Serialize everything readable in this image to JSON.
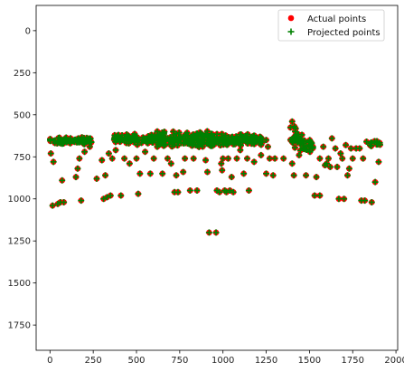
{
  "chart_data": {
    "type": "scatter",
    "title": "",
    "xlabel": "",
    "ylabel": "",
    "xlim": [
      -80,
      2010
    ],
    "ylim": [
      1900,
      -150
    ],
    "y_inverted": true,
    "grid": false,
    "legend_placement": "top-right",
    "x_ticks": [
      0,
      250,
      500,
      750,
      1000,
      1250,
      1500,
      1750,
      2000
    ],
    "y_ticks": [
      0,
      250,
      500,
      750,
      1000,
      1250,
      1500,
      1750
    ],
    "x_tick_labels": [
      "0",
      "250",
      "500",
      "750",
      "1000",
      "1250",
      "1500",
      "1750",
      "2000"
    ],
    "y_tick_labels": [
      "0",
      "250",
      "500",
      "750",
      "1000",
      "1250",
      "1500",
      "1750"
    ],
    "series": [
      {
        "name": "Actual points",
        "marker": "circle",
        "color": "#ff0000"
      },
      {
        "name": "Projected points",
        "marker": "plus",
        "color": "#008000"
      }
    ],
    "clusters": [
      {
        "x": [
          0,
          240
        ],
        "y": [
          630,
          680
        ],
        "n": 90
      },
      {
        "x": [
          370,
          650
        ],
        "y": [
          610,
          680
        ],
        "n": 110
      },
      {
        "x": [
          620,
          960
        ],
        "y": [
          595,
          700
        ],
        "n": 160
      },
      {
        "x": [
          940,
          1230
        ],
        "y": [
          610,
          690
        ],
        "n": 120
      },
      {
        "x": [
          1390,
          1460
        ],
        "y": [
          560,
          720
        ],
        "n": 30
      },
      {
        "x": [
          1460,
          1520
        ],
        "y": [
          640,
          740
        ],
        "n": 25
      },
      {
        "x": [
          1850,
          1910
        ],
        "y": [
          650,
          690
        ],
        "n": 10
      }
    ],
    "points": [
      [
        5,
        730
      ],
      [
        20,
        780
      ],
      [
        15,
        1040
      ],
      [
        45,
        1030
      ],
      [
        60,
        1020
      ],
      [
        70,
        890
      ],
      [
        80,
        1020
      ],
      [
        150,
        870
      ],
      [
        160,
        820
      ],
      [
        170,
        760
      ],
      [
        180,
        1010
      ],
      [
        200,
        720
      ],
      [
        230,
        690
      ],
      [
        270,
        880
      ],
      [
        300,
        770
      ],
      [
        310,
        1000
      ],
      [
        320,
        860
      ],
      [
        330,
        990
      ],
      [
        340,
        730
      ],
      [
        350,
        980
      ],
      [
        360,
        760
      ],
      [
        380,
        710
      ],
      [
        410,
        980
      ],
      [
        430,
        760
      ],
      [
        460,
        790
      ],
      [
        500,
        760
      ],
      [
        510,
        970
      ],
      [
        520,
        850
      ],
      [
        550,
        720
      ],
      [
        580,
        850
      ],
      [
        600,
        760
      ],
      [
        620,
        690
      ],
      [
        650,
        850
      ],
      [
        680,
        760
      ],
      [
        700,
        790
      ],
      [
        720,
        960
      ],
      [
        730,
        860
      ],
      [
        740,
        960
      ],
      [
        770,
        840
      ],
      [
        780,
        760
      ],
      [
        810,
        950
      ],
      [
        830,
        760
      ],
      [
        850,
        950
      ],
      [
        900,
        770
      ],
      [
        910,
        840
      ],
      [
        920,
        1200
      ],
      [
        960,
        1200
      ],
      [
        965,
        950
      ],
      [
        980,
        960
      ],
      [
        990,
        790
      ],
      [
        995,
        830
      ],
      [
        1000,
        760
      ],
      [
        1010,
        950
      ],
      [
        1020,
        960
      ],
      [
        1030,
        760
      ],
      [
        1040,
        950
      ],
      [
        1050,
        870
      ],
      [
        1060,
        960
      ],
      [
        1080,
        760
      ],
      [
        1100,
        710
      ],
      [
        1120,
        850
      ],
      [
        1140,
        760
      ],
      [
        1150,
        950
      ],
      [
        1180,
        780
      ],
      [
        1220,
        740
      ],
      [
        1250,
        850
      ],
      [
        1260,
        690
      ],
      [
        1270,
        760
      ],
      [
        1290,
        860
      ],
      [
        1300,
        760
      ],
      [
        1350,
        760
      ],
      [
        1400,
        790
      ],
      [
        1410,
        860
      ],
      [
        1440,
        740
      ],
      [
        1480,
        860
      ],
      [
        1530,
        980
      ],
      [
        1540,
        870
      ],
      [
        1560,
        980
      ],
      [
        1560,
        760
      ],
      [
        1580,
        690
      ],
      [
        1590,
        800
      ],
      [
        1600,
        790
      ],
      [
        1610,
        760
      ],
      [
        1620,
        810
      ],
      [
        1630,
        640
      ],
      [
        1650,
        700
      ],
      [
        1660,
        810
      ],
      [
        1670,
        1000
      ],
      [
        1680,
        730
      ],
      [
        1690,
        760
      ],
      [
        1700,
        1000
      ],
      [
        1710,
        680
      ],
      [
        1720,
        860
      ],
      [
        1730,
        820
      ],
      [
        1740,
        700
      ],
      [
        1750,
        760
      ],
      [
        1770,
        700
      ],
      [
        1790,
        700
      ],
      [
        1800,
        1010
      ],
      [
        1810,
        760
      ],
      [
        1820,
        1010
      ],
      [
        1830,
        660
      ],
      [
        1850,
        680
      ],
      [
        1860,
        1020
      ],
      [
        1880,
        900
      ],
      [
        1900,
        780
      ],
      [
        1250,
        650
      ],
      [
        1400,
        540
      ],
      [
        1520,
        690
      ]
    ]
  }
}
